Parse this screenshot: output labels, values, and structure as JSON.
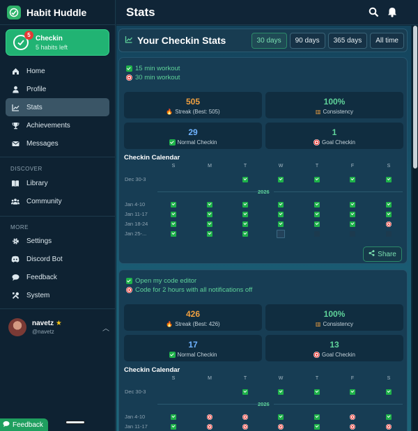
{
  "app": {
    "name": "Habit Huddle"
  },
  "checkin": {
    "title": "Checkin",
    "subtitle": "5 habits left",
    "badge": "5"
  },
  "nav": {
    "main": [
      {
        "label": "Home",
        "icon": "home-icon"
      },
      {
        "label": "Profile",
        "icon": "profile-icon"
      },
      {
        "label": "Stats",
        "icon": "stats-icon",
        "active": true
      },
      {
        "label": "Achievements",
        "icon": "trophy-icon"
      },
      {
        "label": "Messages",
        "icon": "mail-icon"
      }
    ],
    "discover_label": "DISCOVER",
    "discover": [
      {
        "label": "Library",
        "icon": "book-icon"
      },
      {
        "label": "Community",
        "icon": "community-icon"
      }
    ],
    "more_label": "MORE",
    "more": [
      {
        "label": "Settings",
        "icon": "gear-icon"
      },
      {
        "label": "Discord Bot",
        "icon": "discord-icon"
      },
      {
        "label": "Feedback",
        "icon": "chat-icon"
      },
      {
        "label": "System",
        "icon": "tools-icon"
      }
    ]
  },
  "user": {
    "name": "navetz",
    "handle": "@navetz"
  },
  "feedback_button": "Feedback",
  "header": {
    "title": "Stats"
  },
  "stats": {
    "title": "Your Checkin Stats",
    "ranges": [
      "30 days",
      "90 days",
      "365 days",
      "All time"
    ],
    "active_range": "30 days"
  },
  "cards": [
    {
      "normal_habit": "15 min workout",
      "goal_habit": "30 min workout",
      "streak": "505",
      "streak_label": "Streak (Best: 505)",
      "consistency": "100%",
      "consistency_label": "Consistency",
      "normal_count": "29",
      "normal_label": "Normal Checkin",
      "goal_count": "1",
      "goal_label": "Goal Checkin",
      "calendar_title": "Checkin Calendar",
      "days": [
        "S",
        "M",
        "T",
        "W",
        "T",
        "F",
        "S"
      ],
      "year": "2026",
      "weeks": [
        {
          "label": "Dec 30-3",
          "cells": [
            "",
            "",
            "done",
            "done",
            "done",
            "done",
            "done"
          ]
        },
        {
          "label": "Jan 4-10",
          "cells": [
            "done",
            "done",
            "done",
            "done",
            "done",
            "done",
            "done"
          ]
        },
        {
          "label": "Jan 11-17",
          "cells": [
            "done",
            "done",
            "done",
            "done",
            "done",
            "done",
            "done"
          ]
        },
        {
          "label": "Jan 18-24",
          "cells": [
            "done",
            "done",
            "done",
            "done",
            "done",
            "done",
            "goal"
          ]
        },
        {
          "label": "Jan 25-...",
          "cells": [
            "done",
            "done",
            "done",
            "today",
            "empty",
            "empty",
            "empty"
          ]
        }
      ],
      "share_label": "Share"
    },
    {
      "normal_habit": "Open my code editor",
      "goal_habit": "Code for 2 hours with all notifications off",
      "streak": "426",
      "streak_label": "Streak (Best: 426)",
      "consistency": "100%",
      "consistency_label": "Consistency",
      "normal_count": "17",
      "normal_label": "Normal Checkin",
      "goal_count": "13",
      "goal_label": "Goal Checkin",
      "calendar_title": "Checkin Calendar",
      "days": [
        "S",
        "M",
        "T",
        "W",
        "T",
        "F",
        "S"
      ],
      "year": "2026",
      "weeks": [
        {
          "label": "Dec 30-3",
          "cells": [
            "",
            "",
            "done",
            "done",
            "done",
            "done",
            "done"
          ]
        },
        {
          "label": "Jan 4-10",
          "cells": [
            "done",
            "goal",
            "goal",
            "done",
            "done",
            "goal",
            "done"
          ]
        },
        {
          "label": "Jan 11-17",
          "cells": [
            "done",
            "goal",
            "goal",
            "goal",
            "done",
            "goal",
            "goal"
          ]
        }
      ]
    }
  ],
  "colors": {
    "accent": "#21b373",
    "streak": "#f0a040",
    "consistency": "#5fd39a",
    "normal": "#6fb3ff",
    "goal": "#5fd39a"
  }
}
